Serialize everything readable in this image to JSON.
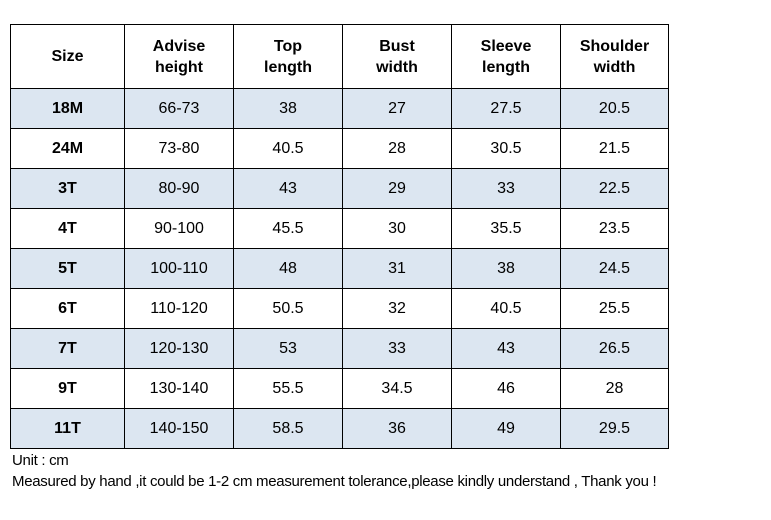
{
  "table": {
    "header": [
      "Size",
      "Advise height",
      "Top length",
      "Bust width",
      "Sleeve length",
      "Shoulder width"
    ],
    "rows": [
      [
        "18M",
        "66-73",
        "38",
        "27",
        "27.5",
        "20.5"
      ],
      [
        "24M",
        "73-80",
        "40.5",
        "28",
        "30.5",
        "21.5"
      ],
      [
        "3T",
        "80-90",
        "43",
        "29",
        "33",
        "22.5"
      ],
      [
        "4T",
        "90-100",
        "45.5",
        "30",
        "35.5",
        "23.5"
      ],
      [
        "5T",
        "100-110",
        "48",
        "31",
        "38",
        "24.5"
      ],
      [
        "6T",
        "110-120",
        "50.5",
        "32",
        "40.5",
        "25.5"
      ],
      [
        "7T",
        "120-130",
        "53",
        "33",
        "43",
        "26.5"
      ],
      [
        "9T",
        "130-140",
        "55.5",
        "34.5",
        "46",
        "28"
      ],
      [
        "11T",
        "140-150",
        "58.5",
        "36",
        "49",
        "29.5"
      ]
    ]
  },
  "notes": [
    "Unit : cm",
    "Measured by hand ,it could be 1-2 cm measurement tolerance,please kindly understand , Thank you !"
  ]
}
